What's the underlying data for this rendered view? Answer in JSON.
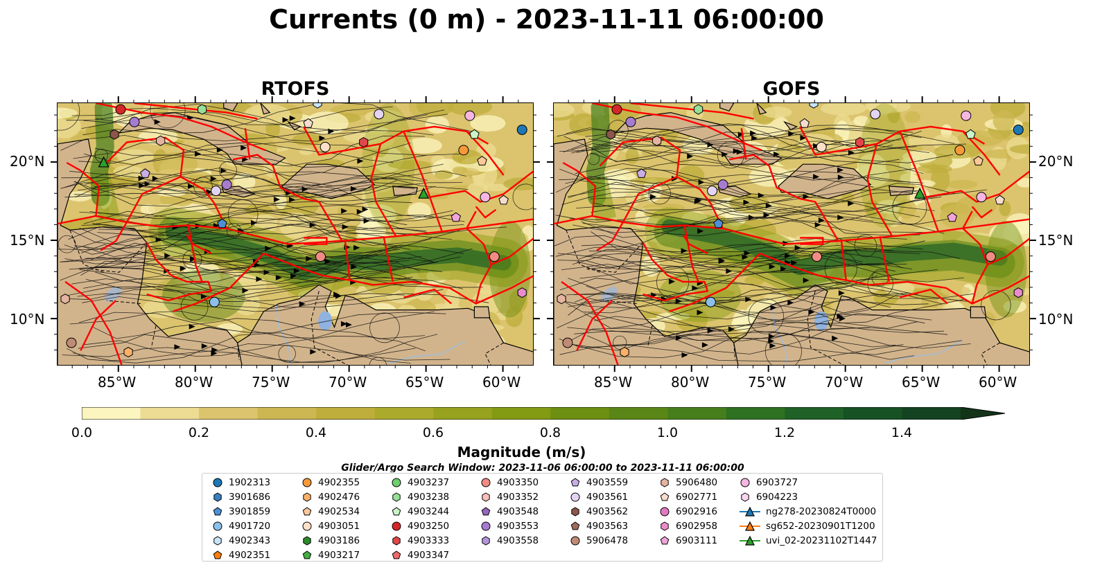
{
  "title": "Currents (0 m) - 2023-11-11 06:00:00",
  "panels": [
    {
      "title": "RTOFS"
    },
    {
      "title": "GOFS"
    }
  ],
  "map": {
    "lon_range": [
      -89,
      -58
    ],
    "lat_range": [
      7,
      23.8
    ],
    "lon_ticks": [
      "85°W",
      "80°W",
      "75°W",
      "70°W",
      "65°W",
      "60°W"
    ],
    "lat_ticks": [
      "20°N",
      "15°N",
      "10°N"
    ],
    "land_color": "#d2b48c",
    "boundary_color": "#ff0000"
  },
  "colorbar": {
    "label": "Magnitude (m/s)",
    "ticks": [
      "0.0",
      "0.2",
      "0.4",
      "0.6",
      "0.8",
      "1.0",
      "1.2",
      "1.4"
    ],
    "range": [
      0,
      1.5
    ],
    "extend": "max",
    "colors": [
      "#fcf5bf",
      "#ecdc93",
      "#dcc46e",
      "#cdb752",
      "#bfae3c",
      "#acaa2c",
      "#97a21e",
      "#839b13",
      "#6d8f12",
      "#5a8617",
      "#467e1c",
      "#2d7121",
      "#1f6127",
      "#165224",
      "#144321",
      "#133419",
      "#111e12"
    ]
  },
  "search_window": "Glider/Argo Search Window: 2023-11-06 06:00:00 to 2023-11-11 06:00:00",
  "legend": {
    "columns": [
      [
        {
          "label": "1902313",
          "marker": "circle",
          "color": "#1f77b4"
        },
        {
          "label": "3901686",
          "marker": "hexagon",
          "color": "#3a7fc0"
        },
        {
          "label": "3901859",
          "marker": "pentagon",
          "color": "#4e90d6"
        },
        {
          "label": "4901720",
          "marker": "circle",
          "color": "#8cc0ea"
        },
        {
          "label": "4902343",
          "marker": "hexagon",
          "color": "#c7e4f8"
        },
        {
          "label": "4902351",
          "marker": "pentagon",
          "color": "#ff7f0e"
        }
      ],
      [
        {
          "label": "4902355",
          "marker": "circle",
          "color": "#f59a3a"
        },
        {
          "label": "4902476",
          "marker": "hexagon",
          "color": "#fbb06a"
        },
        {
          "label": "4902534",
          "marker": "pentagon",
          "color": "#fcc89a"
        },
        {
          "label": "4903051",
          "marker": "circle",
          "color": "#fde0c8"
        },
        {
          "label": "4903186",
          "marker": "hexagon",
          "color": "#2c8a2c"
        },
        {
          "label": "4903217",
          "marker": "pentagon",
          "color": "#44b044"
        }
      ],
      [
        {
          "label": "4903237",
          "marker": "circle",
          "color": "#6ccf6c"
        },
        {
          "label": "4903238",
          "marker": "hexagon",
          "color": "#98e098"
        },
        {
          "label": "4903244",
          "marker": "pentagon",
          "color": "#c8f4c8"
        },
        {
          "label": "4903250",
          "marker": "circle",
          "color": "#d62728"
        },
        {
          "label": "4903333",
          "marker": "hexagon",
          "color": "#e0474a"
        },
        {
          "label": "4903347",
          "marker": "pentagon",
          "color": "#ee6a6a"
        }
      ],
      [
        {
          "label": "4903350",
          "marker": "circle",
          "color": "#f08c84"
        },
        {
          "label": "4903352",
          "marker": "hexagon",
          "color": "#f7c0bc"
        },
        {
          "label": "4903548",
          "marker": "pentagon",
          "color": "#9467bd"
        },
        {
          "label": "4903553",
          "marker": "circle",
          "color": "#a67cd0"
        },
        {
          "label": "4903558",
          "marker": "hexagon",
          "color": "#b495dc"
        }
      ],
      [
        {
          "label": "4903559",
          "marker": "pentagon",
          "color": "#c8aee6"
        },
        {
          "label": "4903561",
          "marker": "circle",
          "color": "#e4d4f4"
        },
        {
          "label": "4903562",
          "marker": "hexagon",
          "color": "#8c564b"
        },
        {
          "label": "4903563",
          "marker": "pentagon",
          "color": "#a06a5c"
        },
        {
          "label": "5906478",
          "marker": "circle",
          "color": "#c08b76"
        }
      ],
      [
        {
          "label": "5906480",
          "marker": "hexagon",
          "color": "#e4b4a0"
        },
        {
          "label": "6902771",
          "marker": "pentagon",
          "color": "#f6dccc"
        },
        {
          "label": "6902916",
          "marker": "circle",
          "color": "#e377c2"
        },
        {
          "label": "6902958",
          "marker": "hexagon",
          "color": "#ea8ccc"
        },
        {
          "label": "6903111",
          "marker": "pentagon",
          "color": "#f0a4d8"
        }
      ],
      [
        {
          "label": "6903727",
          "marker": "circle",
          "color": "#f6b6e2"
        },
        {
          "label": "6904223",
          "marker": "hexagon",
          "color": "#fbd4ef"
        },
        {
          "label": "ng278-20230824T0000",
          "marker": "glider",
          "color": "#1f77b4"
        },
        {
          "label": "sg652-20230901T1200",
          "marker": "glider",
          "color": "#ff7f0e"
        },
        {
          "label": "uvi_02-20231102T1447",
          "marker": "glider",
          "color": "#2ca02c"
        }
      ]
    ]
  },
  "floats": [
    {
      "id": "4903250",
      "lon": -84.9,
      "lat": 23.4
    },
    {
      "id": "4903238",
      "lon": -79.6,
      "lat": 23.4
    },
    {
      "id": "4902343",
      "lon": -72.1,
      "lat": 23.8
    },
    {
      "id": "4903553",
      "lon": -84.0,
      "lat": 22.6
    },
    {
      "id": "4903562",
      "lon": -85.3,
      "lat": 21.8
    },
    {
      "id": "5906480",
      "lon": -82.3,
      "lat": 21.4
    },
    {
      "id": "4903559",
      "lon": -83.3,
      "lat": 19.3
    },
    {
      "id": "4903553",
      "lon": -78.0,
      "lat": 18.6
    },
    {
      "id": "4903561",
      "lon": -78.7,
      "lat": 18.2
    },
    {
      "id": "4903051",
      "lon": -71.6,
      "lat": 21.0
    },
    {
      "id": "6902771",
      "lon": -72.7,
      "lat": 22.5
    },
    {
      "id": "4903333",
      "lon": -69.1,
      "lat": 21.3
    },
    {
      "id": "4903561",
      "lon": -68.1,
      "lat": 23.1
    },
    {
      "id": "6903727",
      "lon": -62.2,
      "lat": 23.0
    },
    {
      "id": "1902313",
      "lon": -58.8,
      "lat": 22.1
    },
    {
      "id": "4903244",
      "lon": -61.9,
      "lat": 21.8
    },
    {
      "id": "4902355",
      "lon": -62.6,
      "lat": 20.8
    },
    {
      "id": "4902534",
      "lon": -61.4,
      "lat": 20.1
    },
    {
      "id": "uvi_02",
      "lon": -65.2,
      "lat": 18.0
    },
    {
      "id": "6903727",
      "lon": -61.2,
      "lat": 17.8
    },
    {
      "id": "6902771",
      "lon": -60.0,
      "lat": 17.6
    },
    {
      "id": "6903111",
      "lon": -63.1,
      "lat": 16.5
    },
    {
      "id": "3901859",
      "lon": -78.3,
      "lat": 16.1
    },
    {
      "id": "4903350",
      "lon": -71.9,
      "lat": 14.0
    },
    {
      "id": "4903350",
      "lon": -60.6,
      "lat": 14.0
    },
    {
      "id": "4901720",
      "lon": -78.8,
      "lat": 11.1
    },
    {
      "id": "6902958",
      "lon": -58.8,
      "lat": 11.7
    },
    {
      "id": "5906480",
      "lon": -88.5,
      "lat": 11.3
    },
    {
      "id": "5906478",
      "lon": -88.1,
      "lat": 8.5
    },
    {
      "id": "4902476",
      "lon": -84.4,
      "lat": 7.9
    }
  ]
}
